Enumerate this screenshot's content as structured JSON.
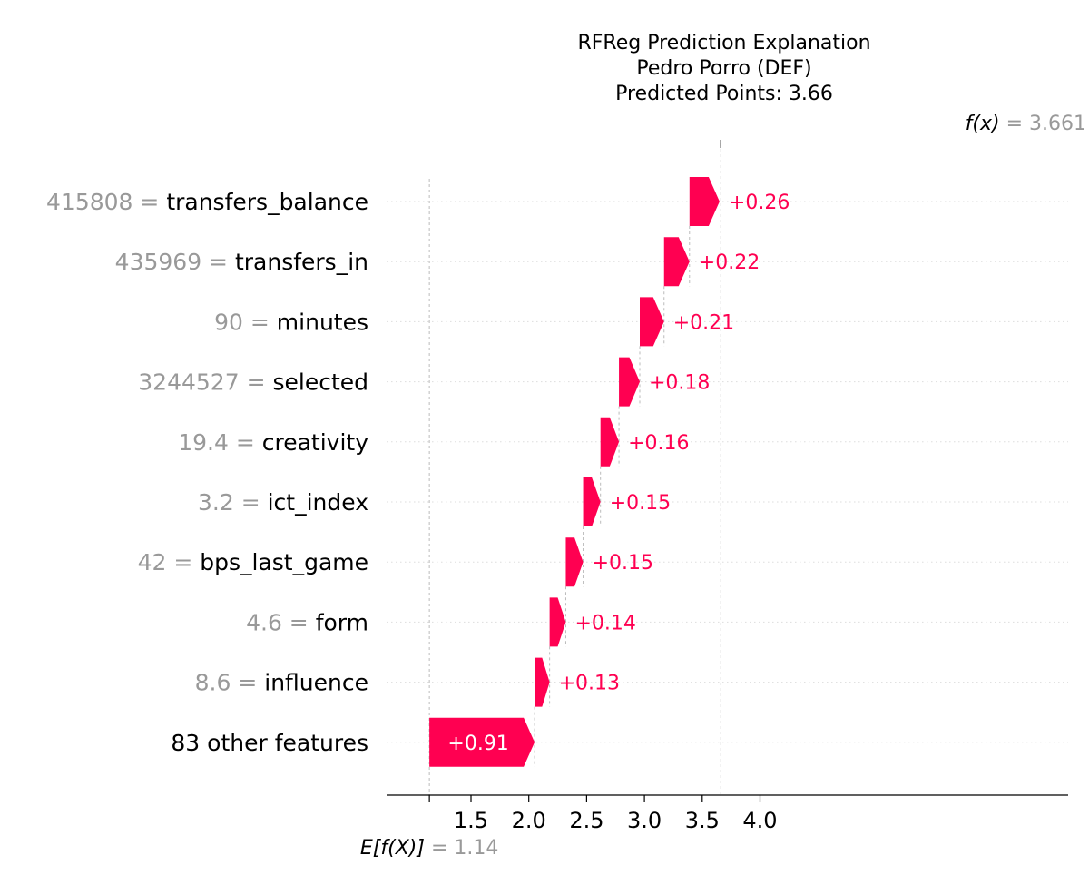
{
  "chart_data": {
    "type": "waterfall",
    "title_lines": [
      "RFReg Prediction Explanation",
      "Pedro Porro (DEF)",
      "Predicted Points: 3.66"
    ],
    "base_value": 1.14,
    "base_label_math": "E[f(X)]",
    "base_value_text": "= 1.14",
    "fx_value": 3.661,
    "fx_label_math": "f(x)",
    "fx_value_text": "= 3.661",
    "x_ticks": [
      1.5,
      2.0,
      2.5,
      3.0,
      3.5,
      4.0
    ],
    "x_tick_labels": [
      "1.5",
      "2.0",
      "2.5",
      "3.0",
      "3.5",
      "4.0"
    ],
    "xlim": [
      1.14,
      4.08
    ],
    "positive_color": "#ff0051",
    "value_color": "#999999",
    "features": [
      {
        "value": "415808",
        "name": "transfers_balance",
        "contribution": 0.26,
        "label": "+0.26"
      },
      {
        "value": "435969",
        "name": "transfers_in",
        "contribution": 0.22,
        "label": "+0.22"
      },
      {
        "value": "90",
        "name": "minutes",
        "contribution": 0.21,
        "label": "+0.21"
      },
      {
        "value": "3244527",
        "name": "selected",
        "contribution": 0.18,
        "label": "+0.18"
      },
      {
        "value": "19.4",
        "name": "creativity",
        "contribution": 0.16,
        "label": "+0.16"
      },
      {
        "value": "3.2",
        "name": "ict_index",
        "contribution": 0.15,
        "label": "+0.15"
      },
      {
        "value": "42",
        "name": "bps_last_game",
        "contribution": 0.15,
        "label": "+0.15"
      },
      {
        "value": "4.6",
        "name": "form",
        "contribution": 0.14,
        "label": "+0.14"
      },
      {
        "value": "8.6",
        "name": "influence",
        "contribution": 0.13,
        "label": "+0.13"
      },
      {
        "value": "",
        "name": "83 other features",
        "contribution": 0.91,
        "label": "+0.91"
      }
    ]
  }
}
